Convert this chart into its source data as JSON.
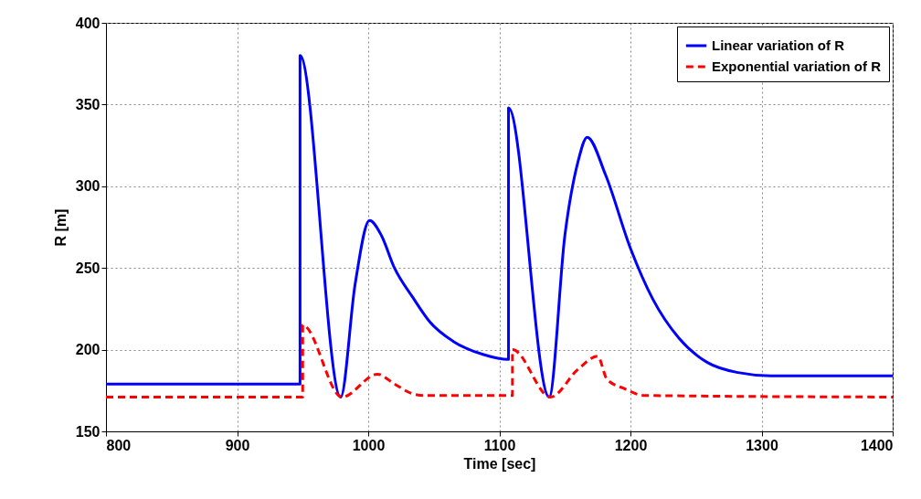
{
  "chart_data": {
    "type": "line",
    "xlabel": "Time [sec]",
    "ylabel": "R [m]",
    "xlim": [
      800,
      1400
    ],
    "ylim": [
      150,
      400
    ],
    "xticks": [
      800,
      900,
      1000,
      1100,
      1200,
      1300,
      1400
    ],
    "yticks": [
      150,
      200,
      250,
      300,
      350,
      400
    ],
    "grid": true,
    "legend": "top right",
    "series": [
      {
        "name": "Linear variation of R",
        "color": "#0000ff",
        "line_style": "solid",
        "x": [
          800,
          948,
          948,
          979,
          990,
          1001,
          1010,
          1020,
          1034,
          1047,
          1065,
          1088,
          1107,
          1107,
          1138,
          1150,
          1160,
          1167,
          1181,
          1200,
          1217,
          1237,
          1259,
          1282,
          1307,
          1350,
          1400
        ],
        "values": [
          179,
          179,
          380,
          171,
          240,
          279,
          270,
          250,
          232,
          217,
          205,
          197,
          194,
          348,
          171,
          270,
          315,
          330,
          307,
          262,
          231,
          207,
          192,
          186,
          184,
          184,
          184
        ]
      },
      {
        "name": "Exponential variation of R",
        "color": "#ff0000",
        "line_style": "dashed",
        "x": [
          800,
          950,
          950,
          980,
          1007,
          1020,
          1034,
          1043,
          1110,
          1110,
          1139,
          1160,
          1175,
          1182,
          1196,
          1210,
          1400
        ],
        "values": [
          171,
          171,
          215,
          171,
          185,
          179,
          173,
          172,
          172,
          200,
          171,
          188,
          196,
          182,
          176,
          172,
          171
        ]
      }
    ]
  }
}
